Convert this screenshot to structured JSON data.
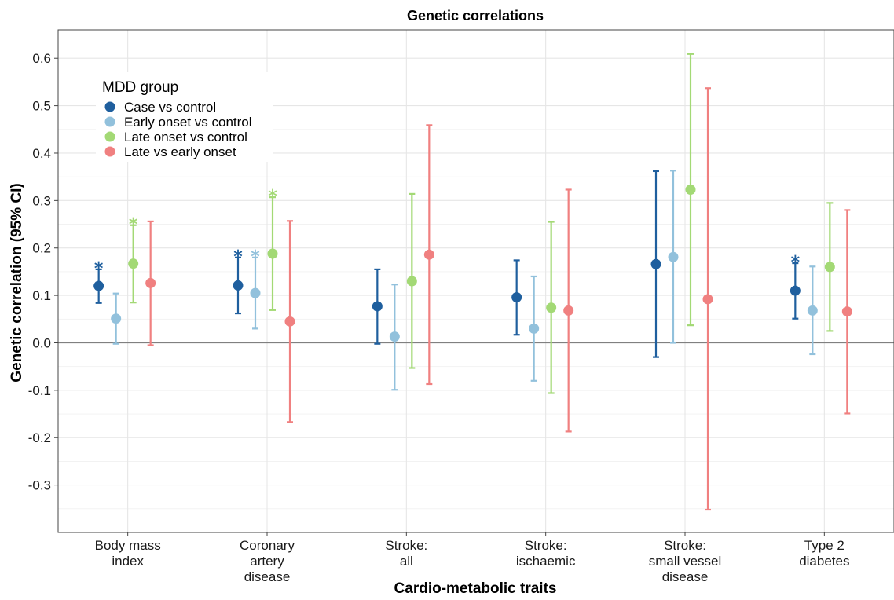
{
  "chart_data": {
    "type": "scatter",
    "title": "Genetic correlations",
    "xlabel": "Cardio-metabolic traits",
    "ylabel": "Genetic correlation (95% CI)",
    "ylim": [
      -0.4,
      0.66
    ],
    "yticks": [
      -0.3,
      -0.2,
      -0.1,
      0.0,
      0.1,
      0.2,
      0.3,
      0.4,
      0.5,
      0.6
    ],
    "ytick_labels": [
      "-0.3",
      "-0.2",
      "-0.1",
      "0.0",
      "0.1",
      "0.2",
      "0.3",
      "0.4",
      "0.5",
      "0.6"
    ],
    "reference_line": 0,
    "grid": true,
    "categories": [
      [
        "Body mass",
        "index"
      ],
      [
        "Coronary",
        "artery",
        "disease"
      ],
      [
        "Stroke:",
        "all"
      ],
      [
        "Stroke:",
        "ischaemic"
      ],
      [
        "Stroke:",
        "small vessel",
        "disease"
      ],
      [
        "Type 2",
        "diabetes"
      ]
    ],
    "legend": {
      "title": "MDD group",
      "placement": "top-left"
    },
    "series": [
      {
        "name": "Case vs control",
        "color": "#1f5f9e",
        "values": [
          0.12,
          0.121,
          0.077,
          0.096,
          0.166,
          0.11
        ],
        "lower": [
          0.084,
          0.062,
          -0.002,
          0.017,
          -0.03,
          0.051
        ],
        "upper": [
          0.155,
          0.18,
          0.155,
          0.174,
          0.362,
          0.168
        ],
        "significant": [
          true,
          true,
          false,
          false,
          false,
          true
        ]
      },
      {
        "name": "Early onset vs control",
        "color": "#92c1dc",
        "values": [
          0.051,
          0.105,
          0.013,
          0.03,
          0.181,
          0.068
        ],
        "lower": [
          -0.002,
          0.03,
          -0.099,
          -0.08,
          0.0,
          -0.024
        ],
        "upper": [
          0.104,
          0.18,
          0.123,
          0.14,
          0.363,
          0.161
        ],
        "significant": [
          false,
          true,
          false,
          false,
          false,
          false
        ]
      },
      {
        "name": "Late onset vs control",
        "color": "#a3d975",
        "values": [
          0.167,
          0.188,
          0.13,
          0.074,
          0.323,
          0.16
        ],
        "lower": [
          0.085,
          0.069,
          -0.053,
          -0.106,
          0.037,
          0.025
        ],
        "upper": [
          0.248,
          0.307,
          0.314,
          0.255,
          0.609,
          0.295
        ],
        "significant": [
          true,
          true,
          false,
          false,
          false,
          false
        ]
      },
      {
        "name": "Late vs early onset",
        "color": "#f08080",
        "values": [
          0.126,
          0.045,
          0.186,
          0.068,
          0.092,
          0.066
        ],
        "lower": [
          -0.005,
          -0.167,
          -0.087,
          -0.187,
          -0.352,
          -0.149
        ],
        "upper": [
          0.256,
          0.257,
          0.459,
          0.323,
          0.537,
          0.28
        ],
        "significant": [
          false,
          false,
          false,
          false,
          false,
          false
        ]
      }
    ],
    "significance_marker": "*"
  }
}
